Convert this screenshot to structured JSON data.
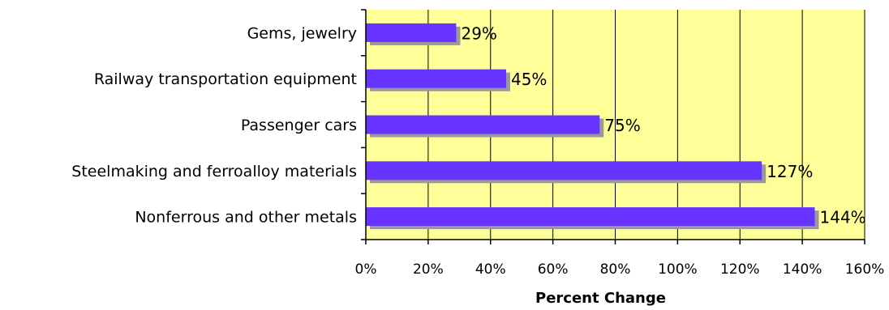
{
  "chart_data": {
    "type": "bar",
    "orientation": "horizontal",
    "categories": [
      "Gems, jewelry",
      "Railway transportation equipment",
      "Passenger cars",
      "Steelmaking and ferroalloy materials",
      "Nonferrous and other metals"
    ],
    "values": [
      29,
      45,
      75,
      127,
      144
    ],
    "data_labels": [
      "29%",
      "45%",
      "75%",
      "127%",
      "144%"
    ],
    "title": "",
    "xlabel": "Percent Change",
    "ylabel": "",
    "xlim": [
      0,
      160
    ],
    "x_ticks": [
      0,
      20,
      40,
      60,
      80,
      100,
      120,
      140,
      160
    ],
    "x_tick_labels": [
      "0%",
      "20%",
      "40%",
      "60%",
      "80%",
      "100%",
      "120%",
      "140%",
      "160%"
    ],
    "grid": true,
    "legend": "none",
    "colors": {
      "plot_background": "#ffff99",
      "bar": "#6633ff",
      "bar_shadow": "#999999",
      "gridline": "#000000"
    }
  }
}
